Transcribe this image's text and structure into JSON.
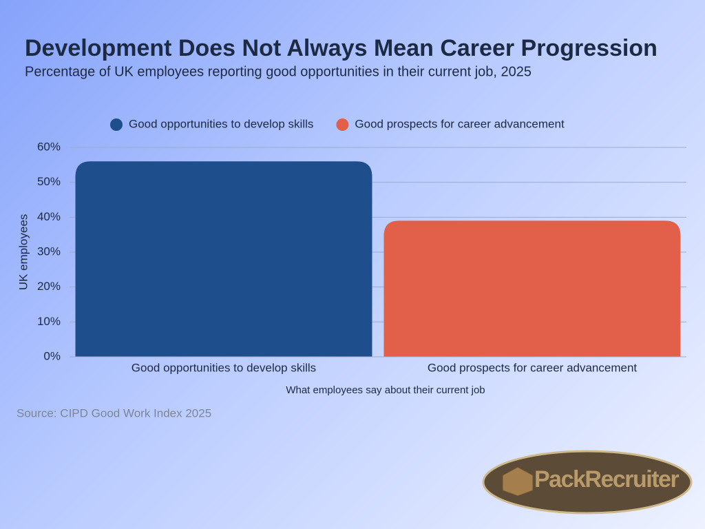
{
  "chart_data": {
    "type": "bar",
    "title": "Development Does Not Always Mean Career Progression",
    "subtitle": "Percentage of UK employees reporting good opportunities in their current job, 2025",
    "categories": [
      "Good opportunities to develop skills",
      "Good prospects for career advancement"
    ],
    "series": [
      {
        "name": "Good opportunities to develop skills",
        "color": "#1f4e8c",
        "values": [
          56,
          null
        ]
      },
      {
        "name": "Good prospects for career advancement",
        "color": "#e2604a",
        "values": [
          null,
          39
        ]
      }
    ],
    "ylim": [
      0,
      60
    ],
    "yticks": [
      {
        "value": 0,
        "label": "0%"
      },
      {
        "value": 10,
        "label": "10%"
      },
      {
        "value": 20,
        "label": "20%"
      },
      {
        "value": 30,
        "label": "30%"
      },
      {
        "value": 40,
        "label": "40%"
      },
      {
        "value": 50,
        "label": "50%"
      },
      {
        "value": 60,
        "label": "60%"
      }
    ],
    "grid": true,
    "xlabel": "What employees say about their current job",
    "ylabel": "UK employees",
    "source": "Source: CIPD Good Work Index 2025",
    "logo": "PackRecruiter"
  }
}
